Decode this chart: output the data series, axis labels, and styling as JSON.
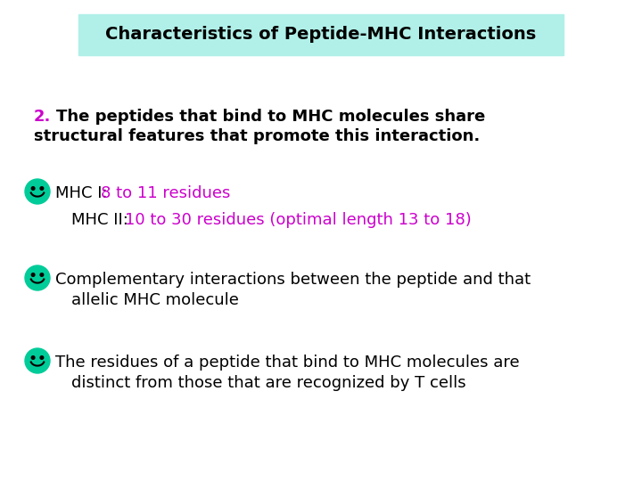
{
  "title": "Characteristics of Peptide-MHC Interactions",
  "title_bg_color": "#b0f0e8",
  "title_fontsize": 14,
  "bg_color": "#ffffff",
  "body_text_color": "#000000",
  "number_color": "#cc00cc",
  "highlight_color": "#cc00cc",
  "smiley_color": "#00cc99",
  "intro_number": "2.",
  "bullet1_black": "MHC I: ",
  "bullet1_color": "8 to 11 residues",
  "bullet1b_indent": "MHC II: ",
  "bullet1b_color": "10 to 30 residues (optimal length 13 to 18)",
  "bullet2_line1": "Complementary interactions between the peptide and that",
  "bullet2_line2": "allelic MHC molecule",
  "bullet3_line1": "The residues of a peptide that bind to MHC molecules are",
  "bullet3_line2": "distinct from those that are recognized by T cells",
  "intro_line1": "The peptides that bind to MHC molecules share",
  "intro_line2": "structural features that promote this interaction.",
  "fontsize_body": 13,
  "fontsize_intro": 13
}
